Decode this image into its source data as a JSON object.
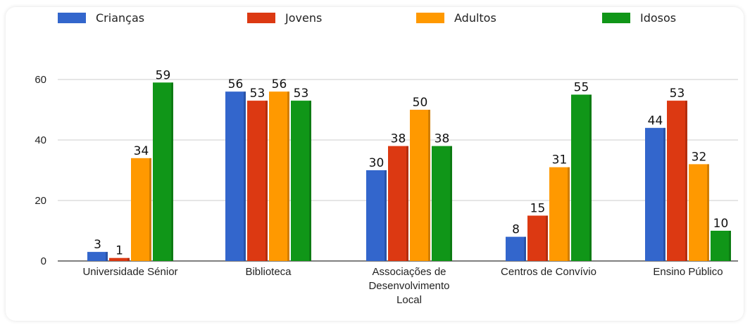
{
  "chart_data": {
    "type": "bar",
    "categories": [
      [
        "Universidade Sénior"
      ],
      [
        "Biblioteca"
      ],
      [
        "Associações de",
        "Desenvolvimento",
        "Local"
      ],
      [
        "Centros de Convívio"
      ],
      [
        "Ensino Público"
      ]
    ],
    "series": [
      {
        "name": "Crianças",
        "color": "#3366cc",
        "values": [
          3,
          56,
          30,
          8,
          44
        ]
      },
      {
        "name": "Jovens",
        "color": "#dc3912",
        "values": [
          1,
          53,
          38,
          15,
          53
        ]
      },
      {
        "name": "Adultos",
        "color": "#ff9900",
        "values": [
          34,
          56,
          50,
          31,
          32
        ]
      },
      {
        "name": "Idosos",
        "color": "#109618",
        "values": [
          59,
          53,
          38,
          55,
          10
        ]
      }
    ],
    "yticks": [
      0,
      20,
      40,
      60
    ],
    "ylim": [
      0,
      60
    ],
    "grid": true,
    "legend_position": "top",
    "title": "",
    "xlabel": "",
    "ylabel": ""
  }
}
